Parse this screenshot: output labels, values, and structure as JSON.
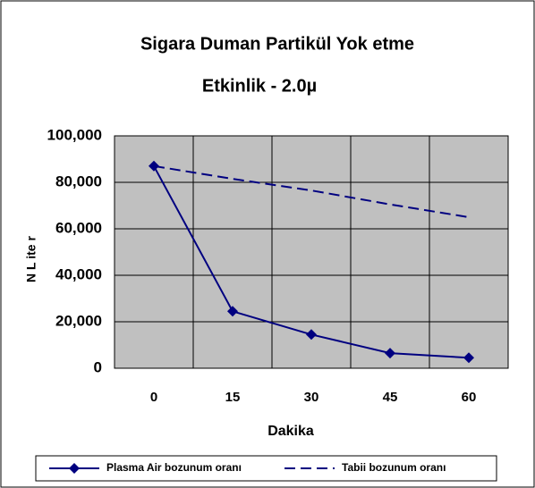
{
  "chart_data": {
    "type": "line",
    "title": "Sigara Duman Partikül Yok etme",
    "subtitle": "Etkinlik - 2.0µ",
    "x_label": "Dakika",
    "y_label": "N L ite r",
    "categories": [
      "0",
      "15",
      "30",
      "45",
      "60"
    ],
    "series": [
      {
        "name": "Plasma Air bozunum oranı",
        "color": "#000080",
        "dash": false,
        "marker": "diamond",
        "values": [
          87000,
          24500,
          14500,
          6500,
          4500
        ]
      },
      {
        "name": "Tabii bozunum oranı",
        "color": "#000080",
        "dash": true,
        "marker": "none",
        "values": [
          87000,
          81500,
          76500,
          70500,
          65000
        ]
      }
    ],
    "ylim": [
      0,
      100000
    ],
    "yticks": [
      {
        "value": 0,
        "label": "0"
      },
      {
        "value": 20000,
        "label": "20,000"
      },
      {
        "value": 40000,
        "label": "40,000"
      },
      {
        "value": 60000,
        "label": "60,000"
      },
      {
        "value": 80000,
        "label": "80,000"
      },
      {
        "value": 100000,
        "label": "100,000"
      }
    ],
    "grid": true,
    "legend": "bottom"
  }
}
